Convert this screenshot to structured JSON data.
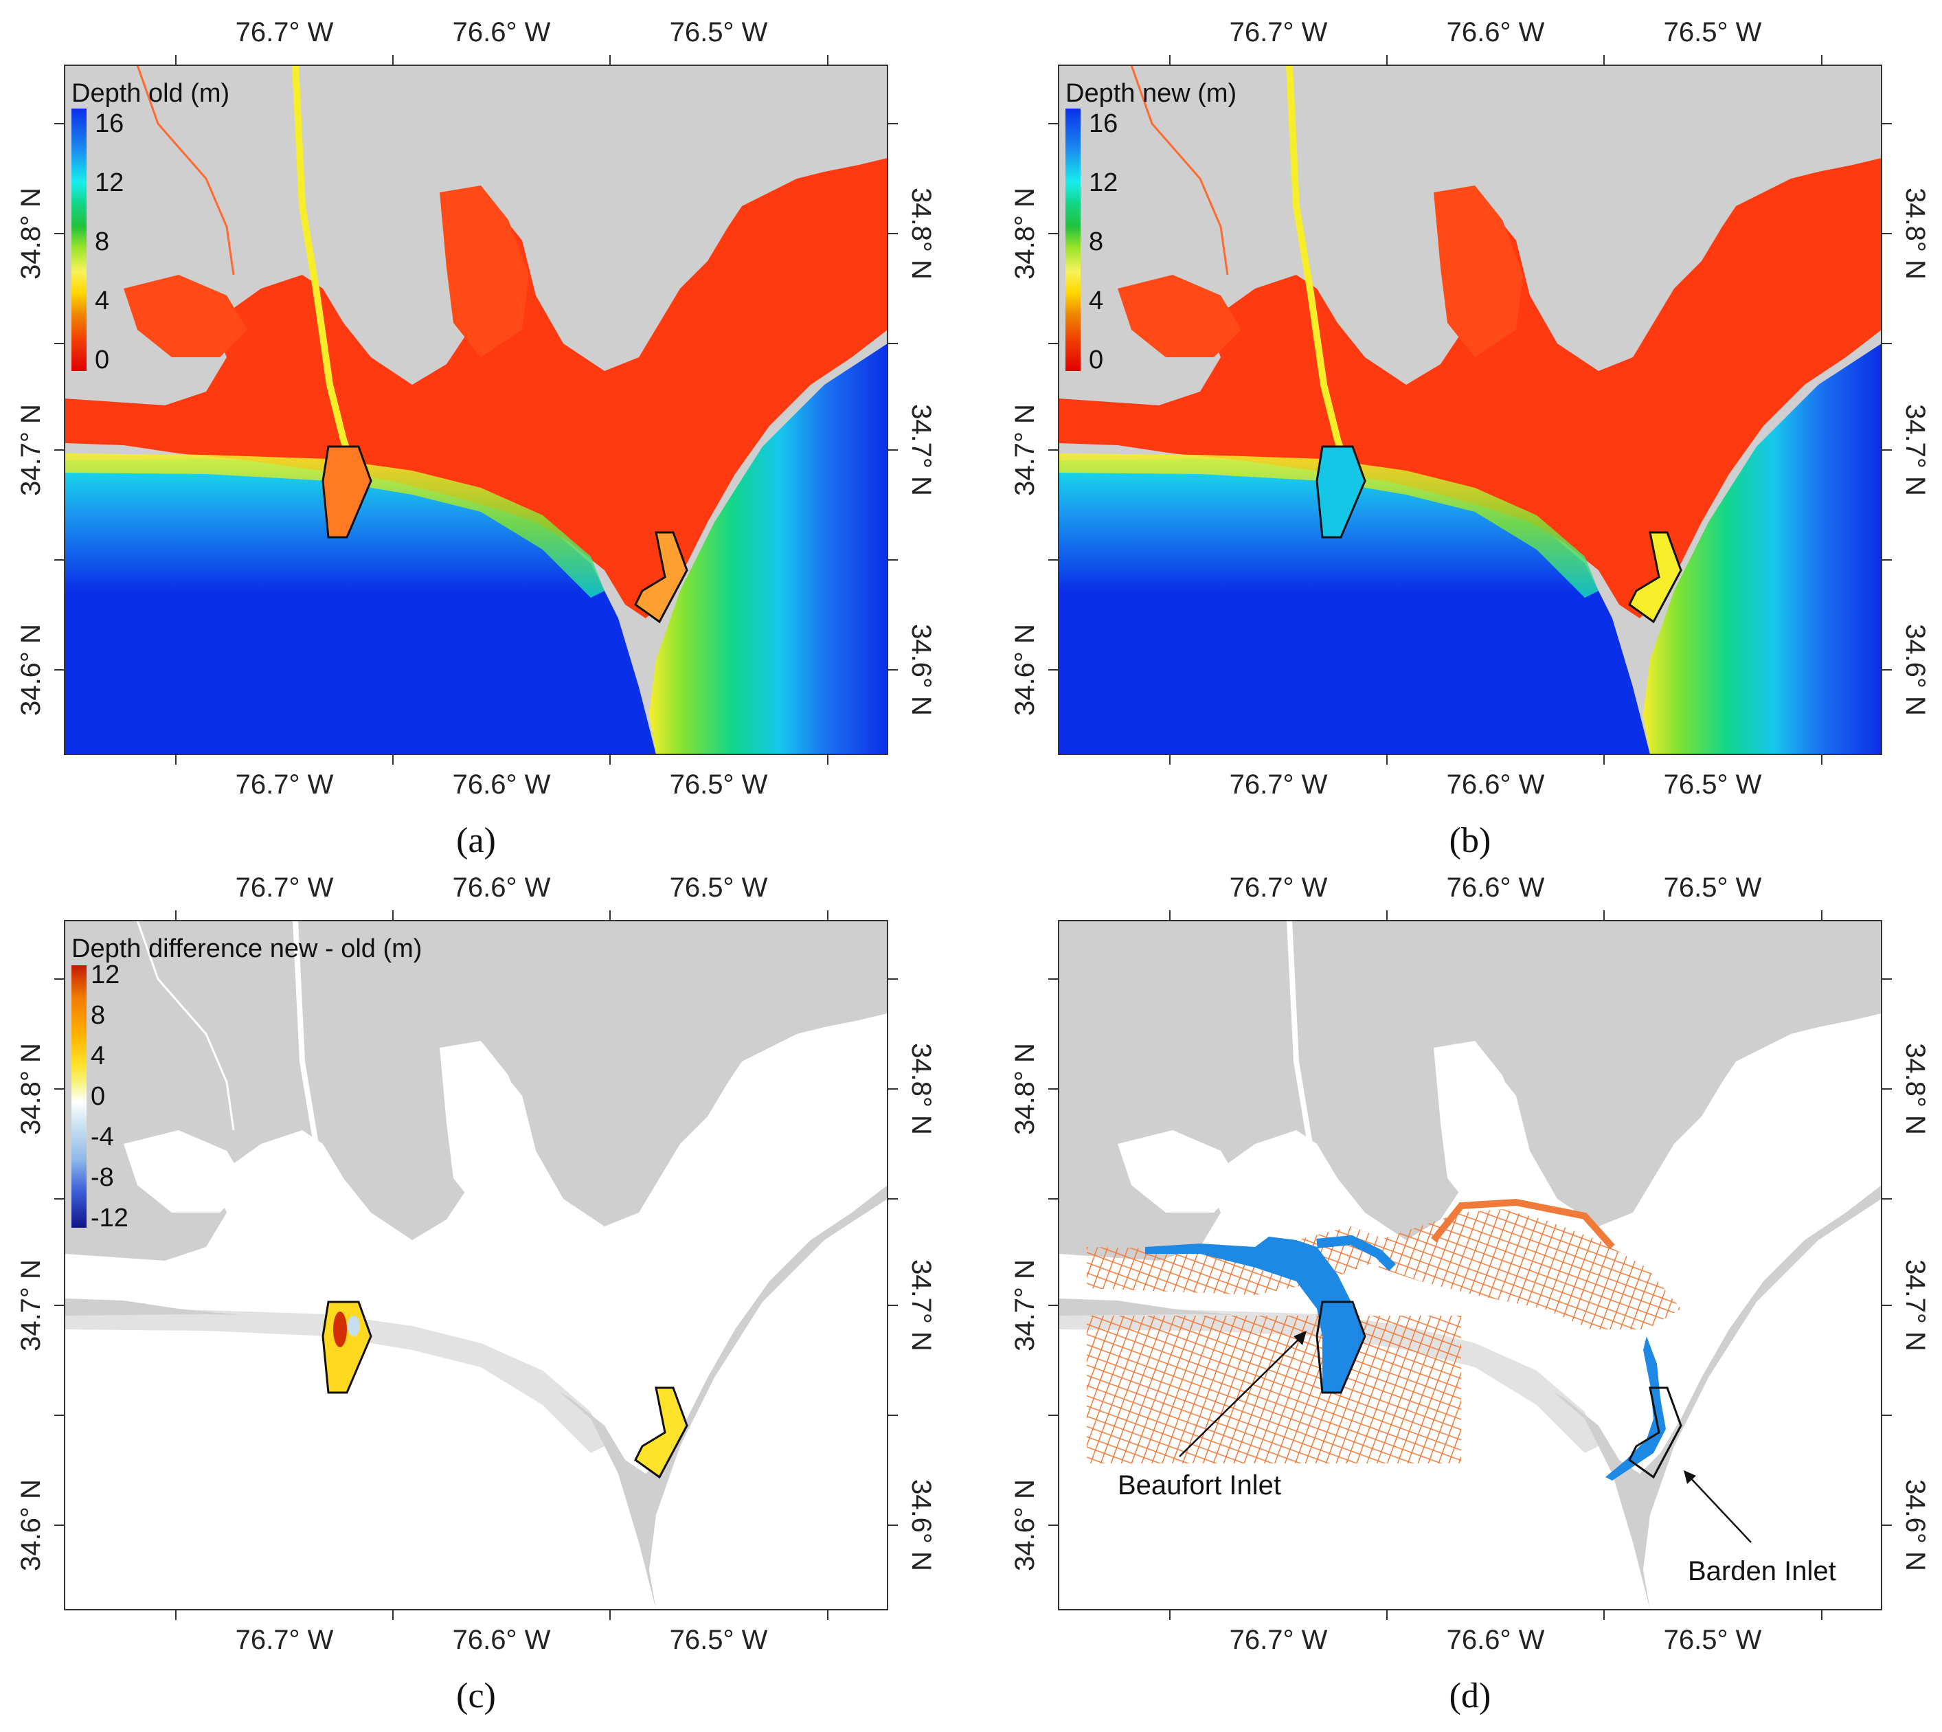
{
  "panels": [
    {
      "caption": "(a)",
      "legend": {
        "title": "Depth old (m)",
        "ticks": [
          "16",
          "12",
          "8",
          "4",
          "0"
        ]
      },
      "lon_labels": [
        "76.7° W",
        "76.6° W",
        "76.5° W"
      ],
      "lat_labels": [
        "34.8° N",
        "34.7° N",
        "34.6° N"
      ]
    },
    {
      "caption": "(b)",
      "legend": {
        "title": "Depth new (m)",
        "ticks": [
          "16",
          "12",
          "8",
          "4",
          "0"
        ]
      },
      "lon_labels": [
        "76.7° W",
        "76.6° W",
        "76.5° W"
      ],
      "lat_labels": [
        "34.8° N",
        "34.7° N",
        "34.6° N"
      ]
    },
    {
      "caption": "(c)",
      "legend": {
        "title": "Depth difference new - old (m)",
        "ticks": [
          "12",
          "8",
          "4",
          "0",
          "-4",
          "-8",
          "-12"
        ]
      },
      "lon_labels": [
        "76.7° W",
        "76.6° W",
        "76.5° W"
      ],
      "lat_labels": [
        "34.8° N",
        "34.7° N",
        "34.6° N"
      ]
    },
    {
      "caption": "(d)",
      "annotations": [
        "Beaufort Inlet",
        "Barden Inlet"
      ],
      "lon_labels": [
        "76.7° W",
        "76.6° W",
        "76.5° W"
      ],
      "lat_labels": [
        "34.8° N",
        "34.7° N",
        "34.6° N"
      ]
    }
  ],
  "colors": {
    "land": "#cfcfcf",
    "water_deep": "#0a2fe8",
    "water_shallow": "#ff3a10",
    "survey_old": "#f07a3a",
    "survey_new": "#1e88e5"
  },
  "depth_scale": [
    "#e00000",
    "#f08a00",
    "#ffd800",
    "#f7f35a",
    "#9be32a",
    "#22c23a",
    "#12d68a",
    "#17eeee",
    "#1a8ff0",
    "#0a2fe8"
  ],
  "difference_scale": [
    "#c41a00",
    "#f07a00",
    "#ffb000",
    "#ffe22a",
    "#f6f690",
    "#ffffff",
    "#c6dff0",
    "#8eb8e8",
    "#3d5fd8",
    "#10148a"
  ]
}
